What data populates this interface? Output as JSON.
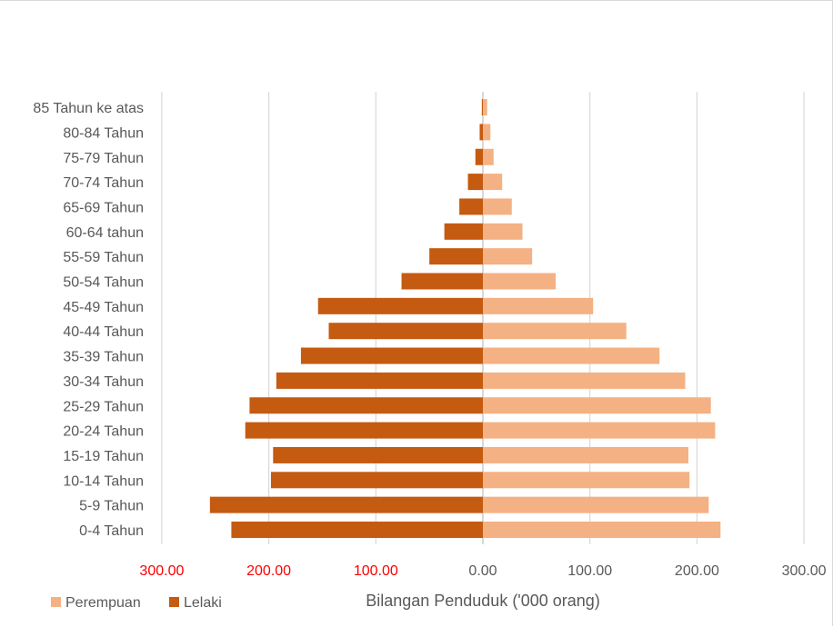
{
  "chart_data": {
    "type": "bar",
    "orientation": "horizontal",
    "subtype": "population-pyramid",
    "title": "",
    "xlabel": "Bilangan Penduduk ('000 orang)",
    "ylabel": "",
    "xlim": [
      -300,
      300
    ],
    "grid": true,
    "legend_position": "bottom-left",
    "categories": [
      "0-4 Tahun",
      "5-9 Tahun",
      "10-14 Tahun",
      "15-19 Tahun",
      "20-24 Tahun",
      "25-29 Tahun",
      "30-34 Tahun",
      "35-39 Tahun",
      "40-44 Tahun",
      "45-49 Tahun",
      "50-54 Tahun",
      "55-59 Tahun",
      "60-64 tahun",
      "65-69 Tahun",
      "70-74 Tahun",
      "75-79 Tahun",
      "80-84 Tahun",
      "85 Tahun ke atas"
    ],
    "series": [
      {
        "name": "Perempuan",
        "color": "#F4B183",
        "values": [
          222,
          211,
          193,
          192,
          217,
          213,
          189,
          165,
          134,
          103,
          68,
          46,
          37,
          27,
          18,
          10,
          7,
          4
        ]
      },
      {
        "name": "Lelaki",
        "color": "#C55A11",
        "values": [
          -235,
          -255,
          -198,
          -196,
          -222,
          -218,
          -193,
          -170,
          -144,
          -154,
          -76,
          -50,
          -36,
          -22,
          -14,
          -7,
          -3,
          -1
        ]
      }
    ],
    "x_ticks": [
      "300.00",
      "200.00",
      "100.00",
      "0.00",
      "100.00",
      "200.00",
      "300.00"
    ],
    "tick_colors": {
      "negative": "#FF0000",
      "positive": "#595959"
    },
    "gridline_color": "#D9D9D9"
  }
}
